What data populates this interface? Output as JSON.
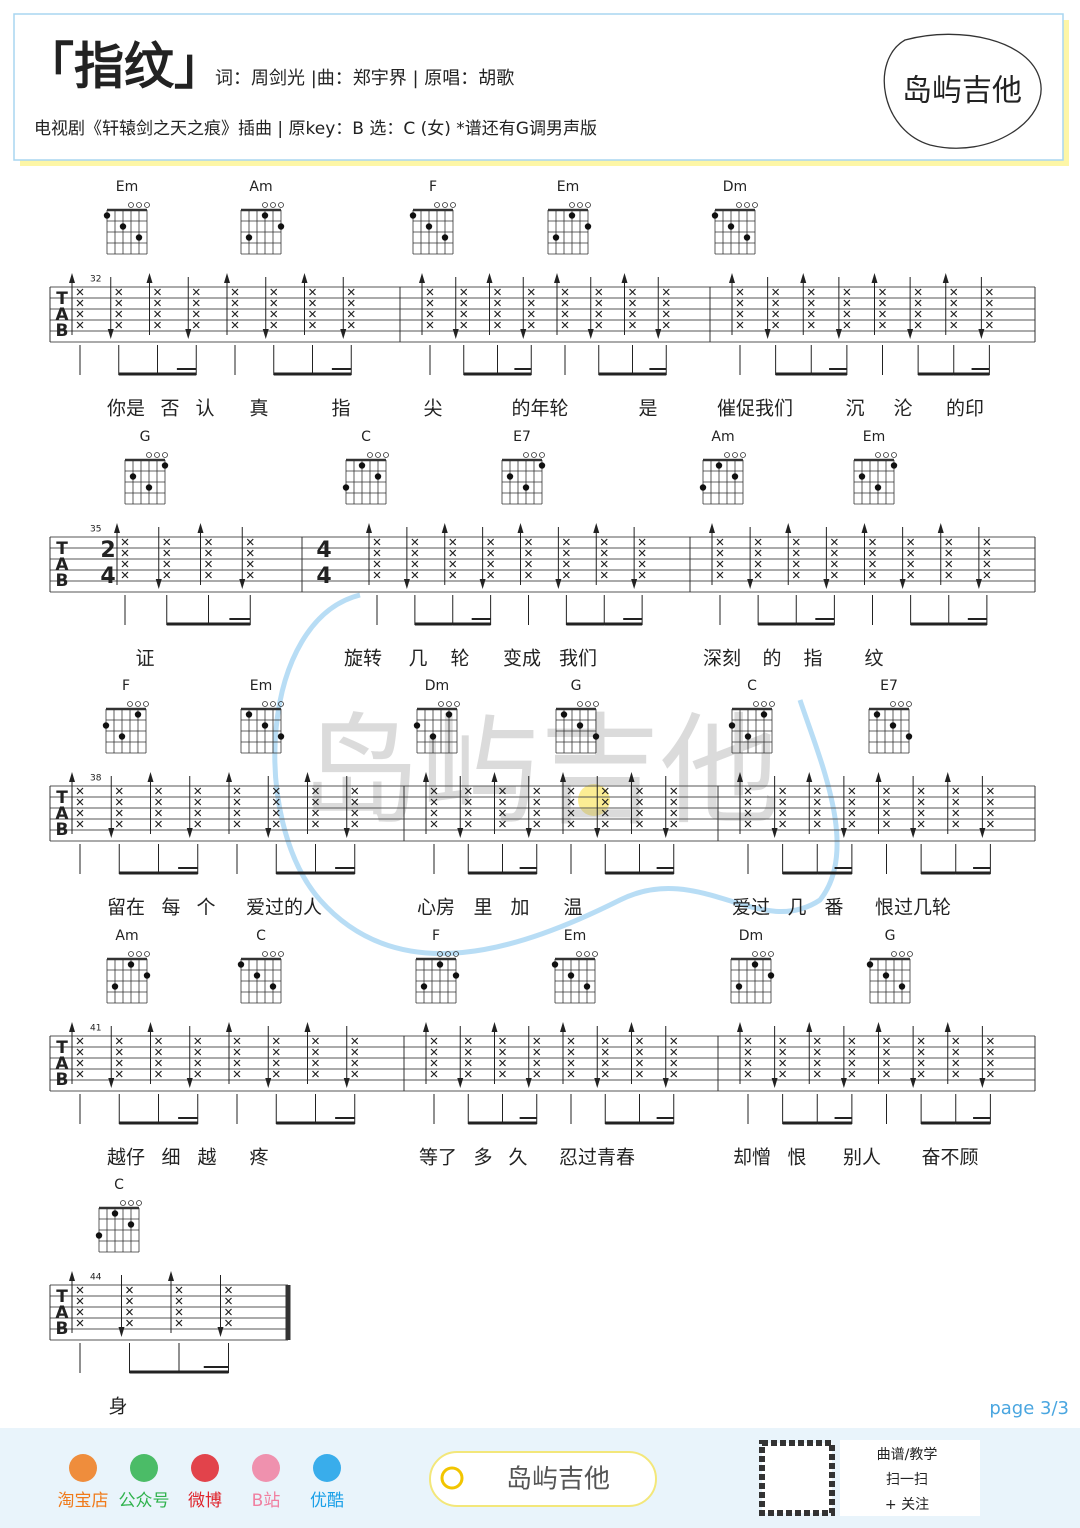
{
  "header": {
    "title": "「指纹」",
    "credits": "词：周剑光 |曲：郑宇界 | 原唱：胡歌",
    "subtitle": "电视剧《轩辕剑之天之痕》插曲 | 原key：B 选：C (女) *谱还有G调男声版",
    "logo": "岛屿吉他"
  },
  "tab_label": [
    "T",
    "A",
    "B"
  ],
  "systems": [
    {
      "measure": 32,
      "chords": [
        "Em",
        "Am",
        "F",
        "Em",
        "Dm"
      ],
      "lyrics": [
        "你是",
        "否",
        "认",
        "真",
        "指",
        "尖",
        "的年轮",
        "是",
        "催促我们",
        "沉",
        "沦",
        "的印"
      ]
    },
    {
      "measure": 35,
      "time": [
        {
          "top": 2,
          "bottom": 4
        },
        {
          "top": 4,
          "bottom": 4
        }
      ],
      "chords": [
        "G",
        "C",
        "E7",
        "Am",
        "Em"
      ],
      "lyrics": [
        "证",
        "旋转",
        "几",
        "轮",
        "变成",
        "我们",
        "深刻",
        "的",
        "指",
        "纹"
      ]
    },
    {
      "measure": 38,
      "chords": [
        "F",
        "Em",
        "Dm",
        "G",
        "C",
        "E7"
      ],
      "lyrics": [
        "留在",
        "每",
        "个",
        "爱过的人",
        "心房",
        "里",
        "加",
        "温",
        "爱过",
        "几",
        "番",
        "恨过几轮"
      ]
    },
    {
      "measure": 41,
      "chords": [
        "Am",
        "C",
        "F",
        "Em",
        "Dm",
        "G"
      ],
      "lyrics": [
        "越仔",
        "细",
        "越",
        "疼",
        "等了",
        "多",
        "久",
        "忍过青春",
        "却憎",
        "恨",
        "别人",
        "奋不顾"
      ]
    },
    {
      "measure": 44,
      "chords": [
        "C"
      ],
      "lyrics": [
        "身"
      ]
    }
  ],
  "page": "page 3/3",
  "footer": {
    "links": [
      "淘宝店",
      "公众号",
      "微博",
      "B站",
      "优酷"
    ],
    "search": "岛屿吉他",
    "qr": [
      "曲谱/教学",
      "扫一扫",
      "+ 关注"
    ]
  }
}
